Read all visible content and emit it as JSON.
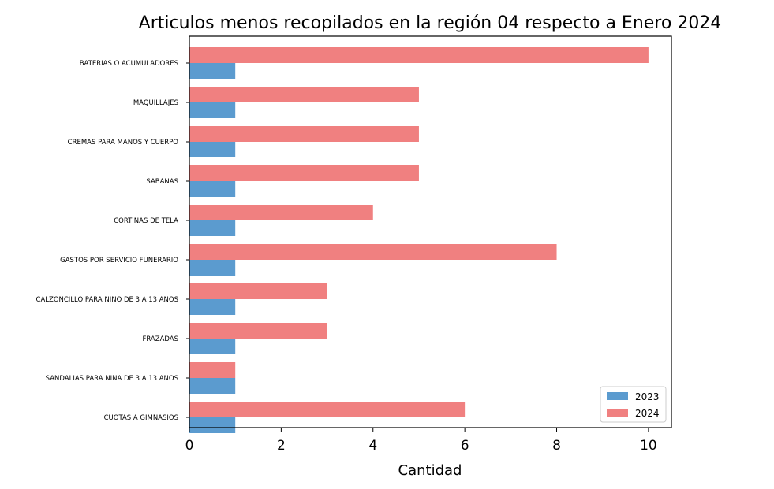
{
  "chart_data": {
    "type": "bar",
    "orientation": "horizontal",
    "title": "Articulos menos recopilados en la región 04 respecto a Enero 2024",
    "xlabel": "Cantidad",
    "ylabel": "",
    "xlim": [
      0,
      10.5
    ],
    "xticks": [
      0,
      2,
      4,
      6,
      8,
      10
    ],
    "xtick_labels": [
      "0",
      "2",
      "4",
      "6",
      "8",
      "10"
    ],
    "grid": false,
    "legend_position": "bottom-right",
    "categories": [
      "BATERIAS O ACUMULADORES",
      "MAQUILLAJES",
      "CREMAS PARA MANOS Y CUERPO",
      "SABANAS",
      "CORTINAS DE TELA",
      "GASTOS POR SERVICIO FUNERARIO",
      "CALZONCILLO PARA NINO DE 3 A 13 ANOS",
      "FRAZADAS",
      "SANDALIAS PARA NINA DE 3 A 13 ANOS",
      "CUOTAS A GIMNASIOS"
    ],
    "series": [
      {
        "name": "2023",
        "color": "#5b9bcf",
        "values": [
          1,
          1,
          1,
          1,
          1,
          1,
          1,
          1,
          1,
          1
        ]
      },
      {
        "name": "2024",
        "color": "#f08080",
        "values": [
          10,
          5,
          5,
          5,
          4,
          8,
          3,
          3,
          1,
          6
        ]
      }
    ]
  }
}
